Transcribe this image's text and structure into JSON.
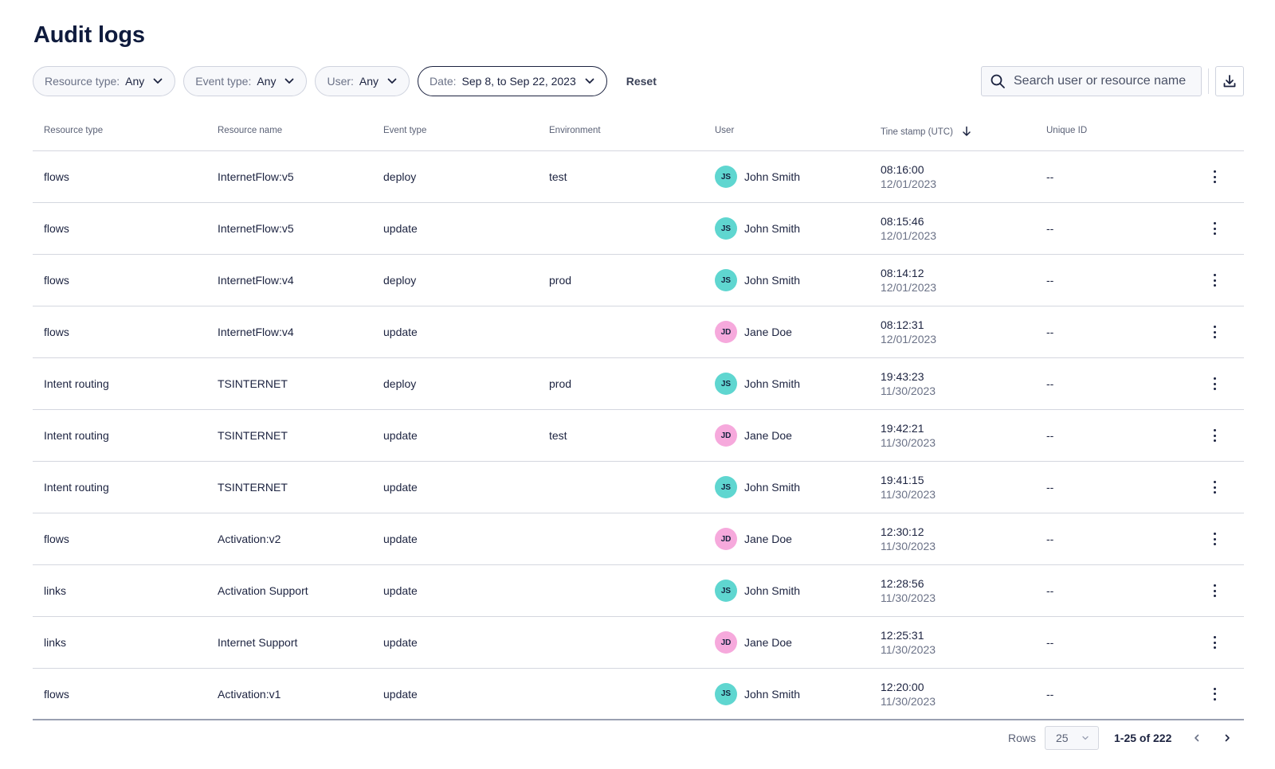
{
  "page": {
    "title": "Audit logs"
  },
  "filters": {
    "resource_type": {
      "label": "Resource type:",
      "value": "Any"
    },
    "event_type": {
      "label": "Event type:",
      "value": "Any"
    },
    "user": {
      "label": "User:",
      "value": "Any"
    },
    "date": {
      "label": "Date:",
      "value": "Sep 8, to Sep 22, 2023"
    },
    "reset_label": "Reset"
  },
  "search": {
    "placeholder": "Search user or resource name",
    "value": ""
  },
  "icons": {
    "search": "search-icon",
    "download": "download-icon",
    "chevron": "chevron-down-icon",
    "sort": "arrow-down-icon",
    "more": "more-vertical-icon",
    "prev": "chevron-left-icon",
    "next": "chevron-right-icon"
  },
  "colors": {
    "avatar_js": "#5fd6d0",
    "avatar_jd": "#f6a9dc",
    "text": "#1c2340"
  },
  "table": {
    "columns": [
      "Resource type",
      "Resource name",
      "Event type",
      "Environment",
      "User",
      "Tine stamp (UTC)",
      "Unique ID"
    ],
    "rows": [
      {
        "resource_type": "flows",
        "resource_name": "InternetFlow:v5",
        "event_type": "deploy",
        "environment": "test",
        "initials": "JS",
        "user": "John Smith",
        "time": "08:16:00",
        "date": "12/01/2023",
        "unique_id": "--"
      },
      {
        "resource_type": "flows",
        "resource_name": "InternetFlow:v5",
        "event_type": "update",
        "environment": "",
        "initials": "JS",
        "user": "John Smith",
        "time": "08:15:46",
        "date": "12/01/2023",
        "unique_id": "--"
      },
      {
        "resource_type": "flows",
        "resource_name": "InternetFlow:v4",
        "event_type": "deploy",
        "environment": "prod",
        "initials": "JS",
        "user": "John Smith",
        "time": "08:14:12",
        "date": "12/01/2023",
        "unique_id": "--"
      },
      {
        "resource_type": "flows",
        "resource_name": "InternetFlow:v4",
        "event_type": "update",
        "environment": "",
        "initials": "JD",
        "user": "Jane Doe",
        "time": "08:12:31",
        "date": "12/01/2023",
        "unique_id": "--"
      },
      {
        "resource_type": "Intent routing",
        "resource_name": "TSINTERNET",
        "event_type": "deploy",
        "environment": "prod",
        "initials": "JS",
        "user": "John Smith",
        "time": "19:43:23",
        "date": "11/30/2023",
        "unique_id": "--"
      },
      {
        "resource_type": "Intent routing",
        "resource_name": "TSINTERNET",
        "event_type": "update",
        "environment": "test",
        "initials": "JD",
        "user": "Jane Doe",
        "time": "19:42:21",
        "date": "11/30/2023",
        "unique_id": "--"
      },
      {
        "resource_type": "Intent routing",
        "resource_name": "TSINTERNET",
        "event_type": "update",
        "environment": "",
        "initials": "JS",
        "user": "John Smith",
        "time": "19:41:15",
        "date": "11/30/2023",
        "unique_id": "--"
      },
      {
        "resource_type": "flows",
        "resource_name": "Activation:v2",
        "event_type": "update",
        "environment": "",
        "initials": "JD",
        "user": "Jane Doe",
        "time": "12:30:12",
        "date": "11/30/2023",
        "unique_id": "--"
      },
      {
        "resource_type": "links",
        "resource_name": "Activation Support",
        "event_type": "update",
        "environment": "",
        "initials": "JS",
        "user": "John Smith",
        "time": "12:28:56",
        "date": "11/30/2023",
        "unique_id": "--"
      },
      {
        "resource_type": "links",
        "resource_name": "Internet Support",
        "event_type": "update",
        "environment": "",
        "initials": "JD",
        "user": "Jane Doe",
        "time": "12:25:31",
        "date": "11/30/2023",
        "unique_id": "--"
      },
      {
        "resource_type": "flows",
        "resource_name": "Activation:v1",
        "event_type": "update",
        "environment": "",
        "initials": "JS",
        "user": "John Smith",
        "time": "12:20:00",
        "date": "11/30/2023",
        "unique_id": "--"
      }
    ]
  },
  "pagination": {
    "rows_label": "Rows",
    "rows_per_page": "25",
    "range": "1-25 of 222"
  }
}
